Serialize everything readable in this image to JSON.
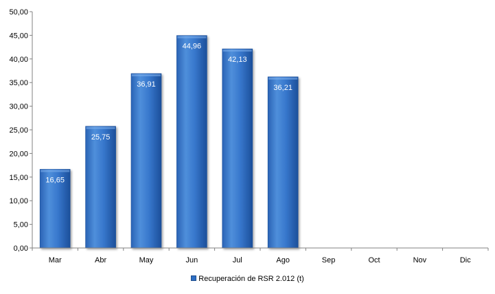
{
  "chart_data": {
    "type": "bar",
    "categories": [
      "Mar",
      "Abr",
      "May",
      "Jun",
      "Jul",
      "Ago",
      "Sep",
      "Oct",
      "Nov",
      "Dic"
    ],
    "series": [
      {
        "name": "Recuperación de RSR 2.012 (t)",
        "values": [
          16.65,
          25.75,
          36.91,
          44.96,
          42.13,
          36.21,
          null,
          null,
          null,
          null
        ],
        "data_labels": [
          "16,65",
          "25,75",
          "36,91",
          "44,96",
          "42,13",
          "36,21",
          "",
          "",
          "",
          ""
        ]
      }
    ],
    "y_ticks": [
      "0,00",
      "5,00",
      "10,00",
      "15,00",
      "20,00",
      "25,00",
      "30,00",
      "35,00",
      "40,00",
      "45,00",
      "50,00"
    ],
    "ylim": [
      0,
      50
    ],
    "title": "",
    "xlabel": "",
    "ylabel": "",
    "grid": false,
    "legend_position": "bottom",
    "colors": {
      "bar_light": "#4f8fdb",
      "bar_mid": "#2e6fc4",
      "bar_dark": "#1c4f9a",
      "axis": "#808080",
      "data_label": "#ffffff"
    }
  }
}
